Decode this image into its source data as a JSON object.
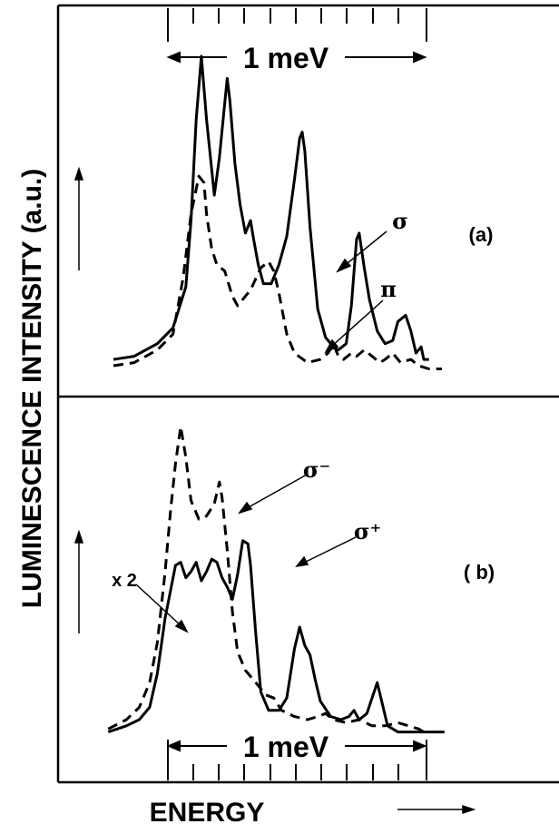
{
  "figure": {
    "ylabel": "LUMINESCENCE  INTENSITY (a.u.)",
    "xlabel": "ENERGY"
  },
  "chart_data": [
    {
      "type": "line",
      "panel_label": "(a)",
      "scale_label": "1 meV",
      "xlabel": "ENERGY",
      "ylabel": "LUMINESCENCE  INTENSITY (a.u.)",
      "x_units": "meV (relative)",
      "xlim": [
        0,
        1.58
      ],
      "ylim": [
        0,
        1.0
      ],
      "grid": false,
      "annotations": [
        {
          "text": "σ",
          "series": "σ",
          "x": 0.87,
          "y": 0.55
        },
        {
          "text": "π",
          "series": "π",
          "x": 0.76,
          "y": 0.08
        }
      ],
      "series": [
        {
          "name": "σ",
          "style": "solid",
          "points": [
            [
              0.0,
              0.04
            ],
            [
              0.08,
              0.05
            ],
            [
              0.17,
              0.09
            ],
            [
              0.23,
              0.14
            ],
            [
              0.28,
              0.27
            ],
            [
              0.3,
              0.48
            ],
            [
              0.32,
              0.8
            ],
            [
              0.34,
              1.0
            ],
            [
              0.36,
              0.8
            ],
            [
              0.39,
              0.56
            ],
            [
              0.41,
              0.68
            ],
            [
              0.43,
              0.85
            ],
            [
              0.44,
              0.93
            ],
            [
              0.45,
              0.86
            ],
            [
              0.47,
              0.66
            ],
            [
              0.49,
              0.53
            ],
            [
              0.51,
              0.44
            ],
            [
              0.53,
              0.48
            ],
            [
              0.54,
              0.43
            ],
            [
              0.56,
              0.34
            ],
            [
              0.58,
              0.28
            ],
            [
              0.61,
              0.28
            ],
            [
              0.64,
              0.34
            ],
            [
              0.67,
              0.43
            ],
            [
              0.7,
              0.61
            ],
            [
              0.72,
              0.74
            ],
            [
              0.73,
              0.76
            ],
            [
              0.74,
              0.7
            ],
            [
              0.76,
              0.46
            ],
            [
              0.79,
              0.2
            ],
            [
              0.82,
              0.11
            ],
            [
              0.85,
              0.08
            ],
            [
              0.87,
              0.07
            ],
            [
              0.9,
              0.09
            ],
            [
              0.92,
              0.21
            ],
            [
              0.94,
              0.42
            ],
            [
              0.95,
              0.44
            ],
            [
              0.97,
              0.33
            ],
            [
              0.99,
              0.23
            ],
            [
              1.02,
              0.13
            ],
            [
              1.05,
              0.09
            ],
            [
              1.08,
              0.1
            ],
            [
              1.1,
              0.16
            ],
            [
              1.13,
              0.18
            ],
            [
              1.15,
              0.13
            ],
            [
              1.17,
              0.06
            ],
            [
              1.19,
              0.08
            ],
            [
              1.2,
              0.04
            ],
            [
              1.22,
              0.04
            ]
          ]
        },
        {
          "name": "π",
          "style": "dashed",
          "points": [
            [
              0.0,
              0.02
            ],
            [
              0.08,
              0.03
            ],
            [
              0.17,
              0.07
            ],
            [
              0.23,
              0.12
            ],
            [
              0.27,
              0.3
            ],
            [
              0.3,
              0.5
            ],
            [
              0.33,
              0.62
            ],
            [
              0.35,
              0.6
            ],
            [
              0.36,
              0.5
            ],
            [
              0.38,
              0.39
            ],
            [
              0.4,
              0.34
            ],
            [
              0.43,
              0.32
            ],
            [
              0.46,
              0.24
            ],
            [
              0.48,
              0.21
            ],
            [
              0.53,
              0.26
            ],
            [
              0.57,
              0.33
            ],
            [
              0.6,
              0.35
            ],
            [
              0.62,
              0.32
            ],
            [
              0.64,
              0.25
            ],
            [
              0.67,
              0.12
            ],
            [
              0.7,
              0.06
            ],
            [
              0.75,
              0.03
            ],
            [
              0.8,
              0.04
            ],
            [
              0.83,
              0.06
            ],
            [
              0.85,
              0.09
            ],
            [
              0.87,
              0.05
            ],
            [
              0.89,
              0.04
            ],
            [
              0.92,
              0.06
            ],
            [
              0.94,
              0.05
            ],
            [
              0.97,
              0.07
            ],
            [
              1.0,
              0.05
            ],
            [
              1.03,
              0.03
            ],
            [
              1.05,
              0.04
            ],
            [
              1.08,
              0.06
            ],
            [
              1.11,
              0.03
            ],
            [
              1.15,
              0.04
            ],
            [
              1.18,
              0.02
            ],
            [
              1.22,
              0.01
            ],
            [
              1.27,
              0.01
            ]
          ]
        }
      ]
    },
    {
      "type": "line",
      "panel_label": "( b)",
      "scale_label": "1 meV",
      "xlabel": "ENERGY",
      "ylabel": "LUMINESCENCE  INTENSITY (a.u.)",
      "x_units": "meV (relative)",
      "xlim": [
        0,
        1.58
      ],
      "ylim": [
        0,
        1.0
      ],
      "grid": false,
      "annotations": [
        {
          "text": "σ⁻",
          "series": "σ⁻",
          "x": 0.68,
          "y": 0.9
        },
        {
          "text": "σ⁺",
          "series": "σ⁺",
          "x": 0.83,
          "y": 0.8
        },
        {
          "text": "x 2",
          "series": "σ⁺",
          "x": -0.1,
          "y": 0.42
        }
      ],
      "series": [
        {
          "name": "σ⁻",
          "style": "dashed",
          "points": [
            [
              -0.02,
              0.02
            ],
            [
              0.05,
              0.05
            ],
            [
              0.1,
              0.09
            ],
            [
              0.14,
              0.17
            ],
            [
              0.17,
              0.3
            ],
            [
              0.2,
              0.53
            ],
            [
              0.22,
              0.72
            ],
            [
              0.24,
              0.88
            ],
            [
              0.26,
              1.0
            ],
            [
              0.28,
              0.9
            ],
            [
              0.3,
              0.76
            ],
            [
              0.33,
              0.7
            ],
            [
              0.36,
              0.71
            ],
            [
              0.39,
              0.75
            ],
            [
              0.41,
              0.82
            ],
            [
              0.42,
              0.77
            ],
            [
              0.44,
              0.6
            ],
            [
              0.46,
              0.4
            ],
            [
              0.48,
              0.27
            ],
            [
              0.51,
              0.21
            ],
            [
              0.55,
              0.17
            ],
            [
              0.59,
              0.13
            ],
            [
              0.62,
              0.12
            ],
            [
              0.65,
              0.08
            ],
            [
              0.7,
              0.06
            ],
            [
              0.75,
              0.05
            ],
            [
              0.79,
              0.06
            ],
            [
              0.82,
              0.07
            ],
            [
              0.85,
              0.05
            ],
            [
              0.9,
              0.04
            ],
            [
              0.95,
              0.05
            ],
            [
              1.0,
              0.03
            ],
            [
              1.05,
              0.03
            ],
            [
              1.1,
              0.04
            ],
            [
              1.14,
              0.03
            ],
            [
              1.18,
              0.02
            ],
            [
              1.2,
              0.01
            ]
          ]
        },
        {
          "name": "σ⁺",
          "style": "solid",
          "points": [
            [
              -0.02,
              0.01
            ],
            [
              0.05,
              0.03
            ],
            [
              0.1,
              0.05
            ],
            [
              0.14,
              0.09
            ],
            [
              0.17,
              0.2
            ],
            [
              0.2,
              0.38
            ],
            [
              0.24,
              0.55
            ],
            [
              0.26,
              0.56
            ],
            [
              0.28,
              0.51
            ],
            [
              0.3,
              0.53
            ],
            [
              0.32,
              0.56
            ],
            [
              0.34,
              0.5
            ],
            [
              0.36,
              0.53
            ],
            [
              0.38,
              0.57
            ],
            [
              0.4,
              0.56
            ],
            [
              0.42,
              0.51
            ],
            [
              0.44,
              0.48
            ],
            [
              0.46,
              0.44
            ],
            [
              0.48,
              0.52
            ],
            [
              0.5,
              0.63
            ],
            [
              0.52,
              0.62
            ],
            [
              0.53,
              0.55
            ],
            [
              0.55,
              0.33
            ],
            [
              0.57,
              0.14
            ],
            [
              0.6,
              0.08
            ],
            [
              0.64,
              0.08
            ],
            [
              0.67,
              0.12
            ],
            [
              0.7,
              0.28
            ],
            [
              0.72,
              0.35
            ],
            [
              0.74,
              0.29
            ],
            [
              0.76,
              0.26
            ],
            [
              0.78,
              0.18
            ],
            [
              0.8,
              0.11
            ],
            [
              0.84,
              0.06
            ],
            [
              0.88,
              0.05
            ],
            [
              0.91,
              0.06
            ],
            [
              0.93,
              0.08
            ],
            [
              0.95,
              0.05
            ],
            [
              0.98,
              0.07
            ],
            [
              1.0,
              0.12
            ],
            [
              1.02,
              0.17
            ],
            [
              1.04,
              0.1
            ],
            [
              1.06,
              0.03
            ],
            [
              1.1,
              0.01
            ],
            [
              1.2,
              0.01
            ],
            [
              1.28,
              0.01
            ]
          ]
        }
      ]
    }
  ]
}
